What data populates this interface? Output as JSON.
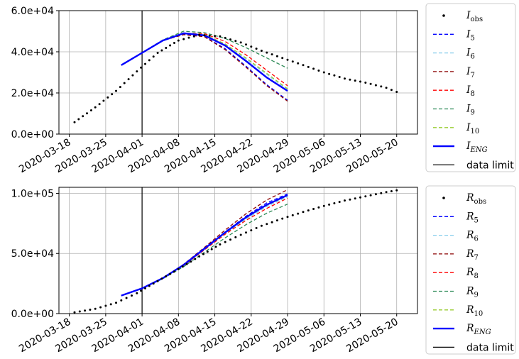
{
  "chart_data": [
    {
      "type": "line",
      "title": "",
      "xlabel": "",
      "ylabel": "",
      "ylim": [
        0,
        60000
      ],
      "x_tick_labels": [
        "2020-03-18",
        "2020-03-25",
        "2020-04-01",
        "2020-04-08",
        "2020-04-15",
        "2020-04-22",
        "2020-04-29",
        "2020-05-06",
        "2020-05-13",
        "2020-05-20"
      ],
      "y_tick_labels": [
        "0.0e+00",
        "2.0e+04",
        "4.0e+04",
        "6.0e+04"
      ],
      "y_tick_values": [
        0,
        20000,
        40000,
        60000
      ],
      "grid": true,
      "legend_placement": "right outside",
      "data_limit": "2020-04-01",
      "observed": {
        "name_base": "I",
        "name_sub": "obs",
        "x": [
          "2020-03-19",
          "2020-03-23",
          "2020-03-27",
          "2020-03-31",
          "2020-04-04",
          "2020-04-08",
          "2020-04-12",
          "2020-04-16",
          "2020-04-20",
          "2020-04-24",
          "2020-04-28",
          "2020-05-02",
          "2020-05-06",
          "2020-05-10",
          "2020-05-14",
          "2020-05-18",
          "2020-05-20"
        ],
        "y": [
          5800,
          13000,
          21000,
          30500,
          39500,
          45500,
          48200,
          47500,
          44500,
          40500,
          37000,
          33500,
          30000,
          27000,
          25000,
          22500,
          20500
        ]
      },
      "series": [
        {
          "name_base": "I",
          "name_sub": "5",
          "color": "#0000ff",
          "dash": "5,3",
          "width": 1.3,
          "x": [
            "2020-03-28",
            "2020-04-01",
            "2020-04-05",
            "2020-04-09",
            "2020-04-13",
            "2020-04-17",
            "2020-04-21",
            "2020-04-25",
            "2020-04-29"
          ],
          "y": [
            33500,
            39500,
            45500,
            48500,
            47500,
            41500,
            33000,
            24000,
            16500
          ]
        },
        {
          "name_base": "I",
          "name_sub": "6",
          "color": "#87ceeb",
          "dash": "5,3",
          "width": 1.3,
          "x": [
            "2020-03-28",
            "2020-04-01",
            "2020-04-05",
            "2020-04-09",
            "2020-04-13",
            "2020-04-17",
            "2020-04-21",
            "2020-04-25",
            "2020-04-29"
          ],
          "y": [
            33500,
            39500,
            45500,
            49000,
            48300,
            43500,
            36500,
            29000,
            21500
          ]
        },
        {
          "name_base": "I",
          "name_sub": "7",
          "color": "#8b0000",
          "dash": "5,3",
          "width": 1.3,
          "x": [
            "2020-03-28",
            "2020-04-01",
            "2020-04-05",
            "2020-04-09",
            "2020-04-13",
            "2020-04-17",
            "2020-04-21",
            "2020-04-25",
            "2020-04-29"
          ],
          "y": [
            33500,
            39500,
            45500,
            48300,
            47300,
            41000,
            32500,
            23500,
            16000
          ]
        },
        {
          "name_base": "I",
          "name_sub": "8",
          "color": "#ff0000",
          "dash": "5,3",
          "width": 1.3,
          "x": [
            "2020-03-28",
            "2020-04-01",
            "2020-04-05",
            "2020-04-09",
            "2020-04-13",
            "2020-04-17",
            "2020-04-21",
            "2020-04-25",
            "2020-04-29"
          ],
          "y": [
            33500,
            39500,
            45500,
            49000,
            48800,
            45000,
            38500,
            31000,
            23500
          ]
        },
        {
          "name_base": "I",
          "name_sub": "9",
          "color": "#2e8b57",
          "dash": "5,3",
          "width": 1.3,
          "x": [
            "2020-03-28",
            "2020-04-01",
            "2020-04-05",
            "2020-04-09",
            "2020-04-13",
            "2020-04-17",
            "2020-04-21",
            "2020-04-25",
            "2020-04-29"
          ],
          "y": [
            33500,
            39500,
            45800,
            50000,
            49300,
            46500,
            42000,
            37000,
            32000
          ]
        },
        {
          "name_base": "I",
          "name_sub": "10",
          "color": "#9acd32",
          "dash": "5,3",
          "width": 1.3,
          "x": [
            "2020-03-28",
            "2020-04-01",
            "2020-04-05",
            "2020-04-09",
            "2020-04-13",
            "2020-04-17",
            "2020-04-21",
            "2020-04-25",
            "2020-04-29"
          ],
          "y": [
            33500,
            39500,
            45500,
            49000,
            48400,
            43800,
            37000,
            29500,
            22000
          ]
        },
        {
          "name_base": "I",
          "name_sub": "ENG",
          "color": "#0000ff",
          "dash": "",
          "width": 2.4,
          "x": [
            "2020-03-28",
            "2020-04-01",
            "2020-04-05",
            "2020-04-09",
            "2020-04-13",
            "2020-04-17",
            "2020-04-21",
            "2020-04-25",
            "2020-04-29"
          ],
          "y": [
            33500,
            39500,
            45500,
            49000,
            48000,
            43000,
            35500,
            27500,
            21000
          ]
        }
      ]
    },
    {
      "type": "line",
      "title": "",
      "xlabel": "",
      "ylabel": "",
      "ylim": [
        0,
        105000
      ],
      "x_tick_labels": [
        "2020-03-18",
        "2020-03-25",
        "2020-04-01",
        "2020-04-08",
        "2020-04-15",
        "2020-04-22",
        "2020-04-29",
        "2020-05-06",
        "2020-05-13",
        "2020-05-20"
      ],
      "y_tick_labels": [
        "0.0e+00",
        "5.0e+04",
        "1.0e+05"
      ],
      "y_tick_values": [
        0,
        50000,
        100000
      ],
      "grid": true,
      "legend_placement": "right outside",
      "data_limit": "2020-04-01",
      "observed": {
        "name_base": "R",
        "name_sub": "obs",
        "x": [
          "2020-03-19",
          "2020-03-23",
          "2020-03-27",
          "2020-03-31",
          "2020-04-04",
          "2020-04-08",
          "2020-04-12",
          "2020-04-16",
          "2020-04-20",
          "2020-04-24",
          "2020-04-28",
          "2020-05-02",
          "2020-05-06",
          "2020-05-10",
          "2020-05-14",
          "2020-05-18",
          "2020-05-20"
        ],
        "y": [
          1000,
          4000,
          9000,
          17000,
          27000,
          37000,
          47500,
          57500,
          65500,
          73000,
          79000,
          84500,
          89500,
          94000,
          97500,
          101000,
          102500
        ]
      },
      "series": [
        {
          "name_base": "R",
          "name_sub": "5",
          "color": "#0000ff",
          "dash": "5,3",
          "width": 1.3,
          "x": [
            "2020-03-28",
            "2020-04-01",
            "2020-04-05",
            "2020-04-09",
            "2020-04-13",
            "2020-04-17",
            "2020-04-21",
            "2020-04-25",
            "2020-04-29"
          ],
          "y": [
            15000,
            21000,
            29500,
            40500,
            54000,
            68000,
            81000,
            92000,
            99500
          ]
        },
        {
          "name_base": "R",
          "name_sub": "6",
          "color": "#87ceeb",
          "dash": "5,3",
          "width": 1.3,
          "x": [
            "2020-03-28",
            "2020-04-01",
            "2020-04-05",
            "2020-04-09",
            "2020-04-13",
            "2020-04-17",
            "2020-04-21",
            "2020-04-25",
            "2020-04-29"
          ],
          "y": [
            15000,
            21000,
            29500,
            40000,
            53000,
            66500,
            78500,
            89000,
            97000
          ]
        },
        {
          "name_base": "R",
          "name_sub": "7",
          "color": "#8b0000",
          "dash": "5,3",
          "width": 1.3,
          "x": [
            "2020-03-28",
            "2020-04-01",
            "2020-04-05",
            "2020-04-09",
            "2020-04-13",
            "2020-04-17",
            "2020-04-21",
            "2020-04-25",
            "2020-04-29"
          ],
          "y": [
            15000,
            21000,
            29500,
            41000,
            55000,
            69500,
            83000,
            94500,
            103000
          ]
        },
        {
          "name_base": "R",
          "name_sub": "8",
          "color": "#ff0000",
          "dash": "5,3",
          "width": 1.3,
          "x": [
            "2020-03-28",
            "2020-04-01",
            "2020-04-05",
            "2020-04-09",
            "2020-04-13",
            "2020-04-17",
            "2020-04-21",
            "2020-04-25",
            "2020-04-29"
          ],
          "y": [
            15000,
            21000,
            29500,
            40000,
            53000,
            66000,
            77500,
            87500,
            96000
          ]
        },
        {
          "name_base": "R",
          "name_sub": "9",
          "color": "#2e8b57",
          "dash": "5,3",
          "width": 1.3,
          "x": [
            "2020-03-28",
            "2020-04-01",
            "2020-04-05",
            "2020-04-09",
            "2020-04-13",
            "2020-04-17",
            "2020-04-21",
            "2020-04-25",
            "2020-04-29"
          ],
          "y": [
            15000,
            21000,
            29000,
            39000,
            51000,
            63000,
            74000,
            83500,
            91000
          ]
        },
        {
          "name_base": "R",
          "name_sub": "10",
          "color": "#9acd32",
          "dash": "5,3",
          "width": 1.3,
          "x": [
            "2020-03-28",
            "2020-04-01",
            "2020-04-05",
            "2020-04-09",
            "2020-04-13",
            "2020-04-17",
            "2020-04-21",
            "2020-04-25",
            "2020-04-29"
          ],
          "y": [
            15000,
            21000,
            29500,
            40500,
            53500,
            67000,
            79500,
            90000,
            98000
          ]
        },
        {
          "name_base": "R",
          "name_sub": "ENG",
          "color": "#0000ff",
          "dash": "",
          "width": 2.4,
          "x": [
            "2020-03-28",
            "2020-04-01",
            "2020-04-05",
            "2020-04-09",
            "2020-04-13",
            "2020-04-17",
            "2020-04-21",
            "2020-04-25",
            "2020-04-29"
          ],
          "y": [
            15000,
            21000,
            29500,
            40500,
            54000,
            67500,
            80000,
            90500,
            98500
          ]
        }
      ]
    }
  ],
  "legend_data_limit_label": "data limit"
}
